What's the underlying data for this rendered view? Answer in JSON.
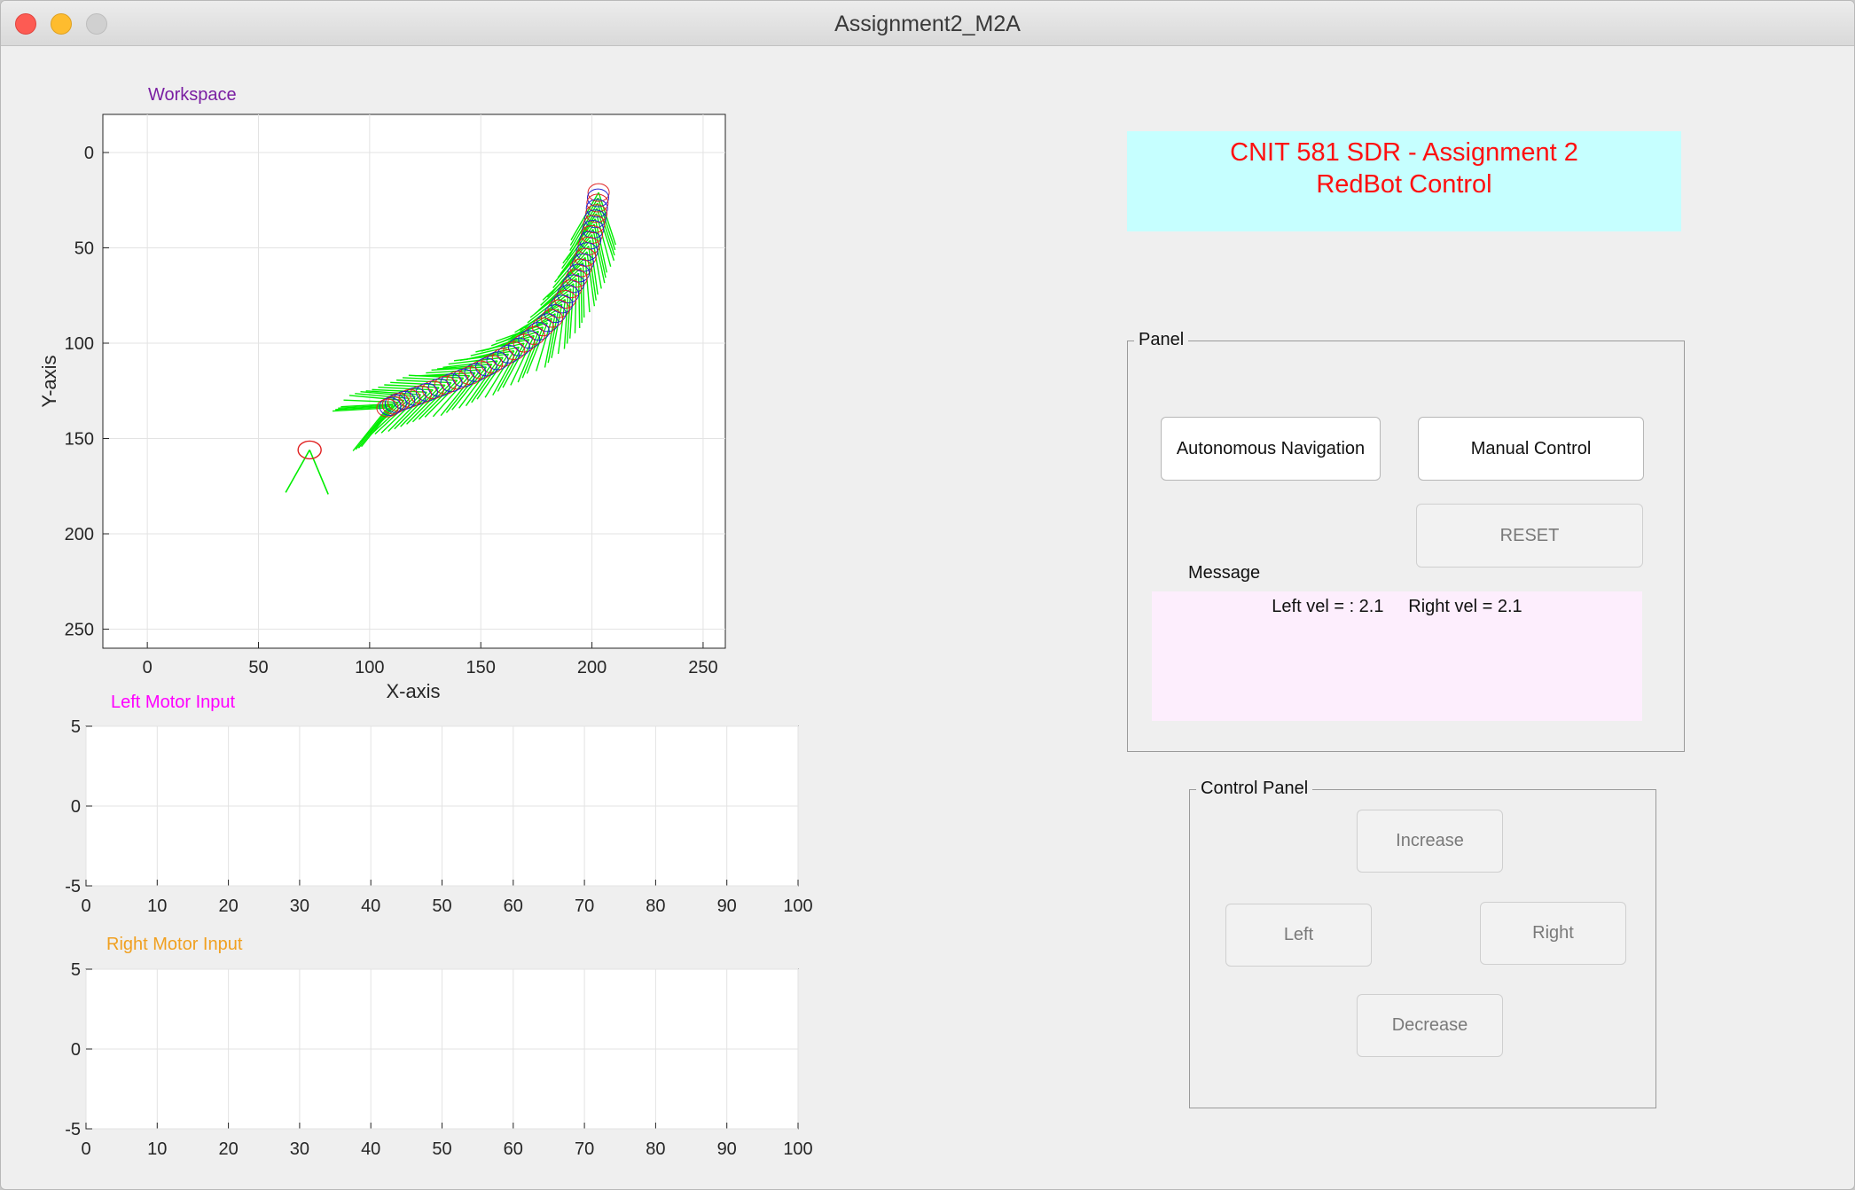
{
  "window": {
    "title": "Assignment2_M2A"
  },
  "workspace": {
    "title": "Workspace",
    "title_color": "#7a1fa2",
    "xlabel": "X-axis",
    "ylabel": "Y-axis",
    "x_ticks": [
      "0",
      "50",
      "100",
      "150",
      "200",
      "250"
    ],
    "y_ticks": [
      "0",
      "50",
      "100",
      "150",
      "200",
      "250"
    ]
  },
  "left_motor": {
    "title": "Left Motor Input",
    "title_color": "#ff00ff",
    "x_ticks": [
      "0",
      "10",
      "20",
      "30",
      "40",
      "50",
      "60",
      "70",
      "80",
      "90",
      "100"
    ],
    "y_ticks": [
      "5",
      "0",
      "-5"
    ]
  },
  "right_motor": {
    "title": "Right Motor Input",
    "title_color": "#f0a020",
    "x_ticks": [
      "0",
      "10",
      "20",
      "30",
      "40",
      "50",
      "60",
      "70",
      "80",
      "90",
      "100"
    ],
    "y_ticks": [
      "5",
      "0",
      "-5"
    ]
  },
  "header": {
    "line1": "CNIT 581 SDR - Assignment 2",
    "line2": "RedBot Control"
  },
  "panel": {
    "label": "Panel",
    "autonomous_label": "Autonomous Navigation",
    "manual_label": "Manual Control",
    "reset_label": "RESET",
    "message_label": "Message",
    "message_text": "Left vel = : 2.1     Right vel = 2.1"
  },
  "control_panel": {
    "label": "Control Panel",
    "increase_label": "Increase",
    "left_label": "Left",
    "right_label": "Right",
    "decrease_label": "Decrease"
  },
  "chart_data": [
    {
      "type": "scatter",
      "title": "Workspace",
      "xlabel": "X-axis",
      "ylabel": "Y-axis",
      "xlim": [
        -20,
        260
      ],
      "ylim": [
        260,
        -20
      ],
      "y_reversed": true,
      "grid": true,
      "colors": {
        "robot_outline_red": "#e02020",
        "robot_outline_blue": "#2020d0",
        "sensor_rays": "#00ee00"
      },
      "trajectory": {
        "x": [
          203,
          202,
          200,
          197,
          193,
          188,
          182,
          174,
          165,
          155,
          145,
          134,
          123,
          113,
          108
        ],
        "y": [
          21,
          32,
          43,
          55,
          66,
          77,
          87,
          96,
          104,
          111,
          117,
          122,
          127,
          131,
          134
        ]
      },
      "start_robot": {
        "x": 73,
        "y": 156
      }
    },
    {
      "type": "line",
      "title": "Left Motor Input",
      "xlim": [
        0,
        100
      ],
      "ylim": [
        -5,
        5
      ],
      "grid": true,
      "series": []
    },
    {
      "type": "line",
      "title": "Right Motor Input",
      "xlim": [
        0,
        100
      ],
      "ylim": [
        -5,
        5
      ],
      "grid": true,
      "series": []
    }
  ]
}
